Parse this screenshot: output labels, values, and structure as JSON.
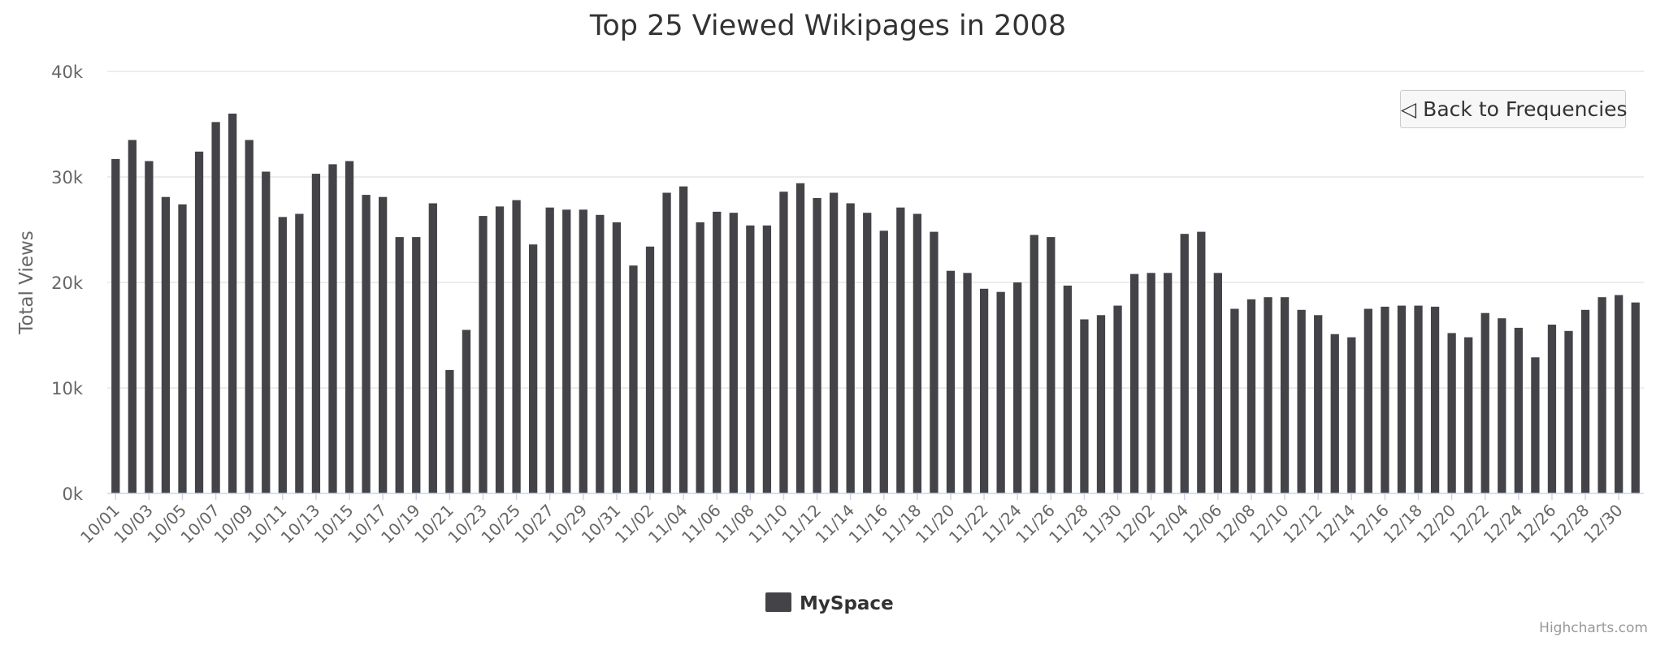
{
  "chart_data": {
    "type": "bar",
    "title": "Top 25 Viewed Wikipages in 2008",
    "xlabel": "",
    "ylabel": "Total Views",
    "ylim": [
      0,
      40000
    ],
    "yticks": [
      "0k",
      "10k",
      "20k",
      "30k",
      "40k"
    ],
    "grid": true,
    "legend_position": "bottom-center",
    "categories": [
      "10/01",
      "10/02",
      "10/03",
      "10/04",
      "10/05",
      "10/06",
      "10/07",
      "10/08",
      "10/09",
      "10/10",
      "10/11",
      "10/12",
      "10/13",
      "10/14",
      "10/15",
      "10/16",
      "10/17",
      "10/18",
      "10/19",
      "10/20",
      "10/21",
      "10/22",
      "10/23",
      "10/24",
      "10/25",
      "10/26",
      "10/27",
      "10/28",
      "10/29",
      "10/30",
      "10/31",
      "11/01",
      "11/02",
      "11/03",
      "11/04",
      "11/05",
      "11/06",
      "11/07",
      "11/08",
      "11/09",
      "11/10",
      "11/11",
      "11/12",
      "11/13",
      "11/14",
      "11/15",
      "11/16",
      "11/17",
      "11/18",
      "11/19",
      "11/20",
      "11/21",
      "11/22",
      "11/23",
      "11/24",
      "11/25",
      "11/26",
      "11/27",
      "11/28",
      "11/29",
      "11/30",
      "12/01",
      "12/02",
      "12/03",
      "12/04",
      "12/05",
      "12/06",
      "12/07",
      "12/08",
      "12/09",
      "12/10",
      "12/11",
      "12/12",
      "12/13",
      "12/14",
      "12/15",
      "12/16",
      "12/17",
      "12/18",
      "12/19",
      "12/20",
      "12/21",
      "12/22",
      "12/23",
      "12/24",
      "12/25",
      "12/26",
      "12/27",
      "12/28",
      "12/29",
      "12/30",
      "12/31"
    ],
    "series": [
      {
        "name": "MySpace",
        "color": "#434348",
        "values": [
          31700,
          33500,
          31500,
          28100,
          27400,
          32400,
          35200,
          36000,
          33500,
          30500,
          26200,
          26500,
          30300,
          31200,
          31500,
          28300,
          28100,
          24300,
          24300,
          27500,
          11700,
          15500,
          26300,
          27200,
          27800,
          23600,
          27100,
          26900,
          26900,
          26400,
          25700,
          21600,
          23400,
          28500,
          29100,
          25700,
          26700,
          26600,
          25400,
          25400,
          28600,
          29400,
          28000,
          28500,
          27500,
          26600,
          24900,
          27100,
          26500,
          24800,
          21100,
          20900,
          19400,
          19100,
          20000,
          24500,
          24300,
          19700,
          16500,
          16900,
          17800,
          20800,
          20900,
          20900,
          24600,
          24800,
          20900,
          17500,
          18400,
          18600,
          18600,
          17400,
          16900,
          15100,
          14800,
          17500,
          17700,
          17800,
          17800,
          17700,
          15200,
          14800,
          17100,
          16600,
          15700,
          12900,
          16000,
          15400,
          17400,
          18600,
          18800,
          18100
        ]
      }
    ]
  },
  "drill_button_label": "◁ Back to Frequencies",
  "credits": "Highcharts.com"
}
